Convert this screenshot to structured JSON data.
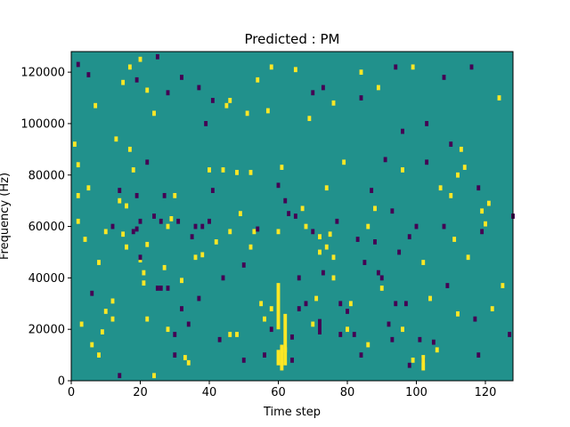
{
  "chart_data": {
    "type": "heatmap",
    "title": "Predicted : PM",
    "xlabel": "Time step",
    "ylabel": "Frequency (Hz)",
    "xlim": [
      0,
      128
    ],
    "ylim": [
      0,
      128000
    ],
    "xticks": [
      "0",
      "20",
      "40",
      "60",
      "80",
      "100",
      "120"
    ],
    "yticks": [
      "0",
      "20000",
      "40000",
      "60000",
      "80000",
      "100000",
      "120000"
    ],
    "background_value": 0,
    "colors": {
      "background": "#21918c",
      "high": "#fde725",
      "low": "#440154",
      "mid_dark": "#3b528b"
    },
    "cell_height_hz": 2000,
    "cells": [
      [
        2,
        123000,
        -1
      ],
      [
        5,
        119000,
        -1
      ],
      [
        7,
        107000,
        1
      ],
      [
        10,
        27000,
        1
      ],
      [
        12,
        31000,
        1
      ],
      [
        13,
        94000,
        1
      ],
      [
        14,
        74000,
        -1
      ],
      [
        15,
        116000,
        1
      ],
      [
        17,
        122000,
        1
      ],
      [
        20,
        125000,
        1
      ],
      [
        22,
        113000,
        1
      ],
      [
        24,
        104000,
        1
      ],
      [
        1,
        92000,
        1
      ],
      [
        2,
        84000,
        1
      ],
      [
        2,
        72000,
        1
      ],
      [
        2,
        62000,
        1
      ],
      [
        3,
        22000,
        1
      ],
      [
        4,
        55000,
        1
      ],
      [
        5,
        75000,
        1
      ],
      [
        6,
        34000,
        -1
      ],
      [
        8,
        46000,
        1
      ],
      [
        9,
        19000,
        1
      ],
      [
        12,
        24000,
        1
      ],
      [
        12,
        60000,
        -1
      ],
      [
        14,
        70000,
        1
      ],
      [
        15,
        57000,
        1
      ],
      [
        16,
        52000,
        1
      ],
      [
        17,
        90000,
        1
      ],
      [
        18,
        82000,
        1
      ],
      [
        19,
        72000,
        -1
      ],
      [
        19,
        59000,
        -1
      ],
      [
        20,
        62000,
        -1
      ],
      [
        20,
        47000,
        1
      ],
      [
        21,
        38000,
        1
      ],
      [
        21,
        42000,
        1
      ],
      [
        22,
        85000,
        -1
      ],
      [
        22,
        53000,
        1
      ],
      [
        24,
        64000,
        -1
      ],
      [
        25,
        36000,
        -1
      ],
      [
        26,
        62000,
        -1
      ],
      [
        27,
        72000,
        -1
      ],
      [
        27,
        44000,
        1
      ],
      [
        28,
        20000,
        1
      ],
      [
        28,
        36000,
        -1
      ],
      [
        29,
        63000,
        1
      ],
      [
        30,
        18000,
        -1
      ],
      [
        30,
        72000,
        1
      ],
      [
        31,
        62000,
        -1
      ],
      [
        32,
        39000,
        1
      ],
      [
        33,
        9000,
        1
      ],
      [
        34,
        7000,
        1
      ],
      [
        35,
        56000,
        -1
      ],
      [
        36,
        48000,
        1
      ],
      [
        37,
        32000,
        -1
      ],
      [
        38,
        49000,
        1
      ],
      [
        38,
        60000,
        -1
      ],
      [
        39,
        100000,
        -1
      ],
      [
        40,
        82000,
        1
      ],
      [
        41,
        74000,
        -1
      ],
      [
        43,
        16000,
        -1
      ],
      [
        44,
        82000,
        1
      ],
      [
        45,
        107000,
        1
      ],
      [
        46,
        58000,
        1
      ],
      [
        48,
        18000,
        1
      ],
      [
        48,
        81000,
        1
      ],
      [
        49,
        65000,
        1
      ],
      [
        50,
        45000,
        -1
      ],
      [
        51,
        104000,
        1
      ],
      [
        52,
        81000,
        1
      ],
      [
        53,
        58000,
        1
      ],
      [
        54,
        59000,
        -1
      ],
      [
        55,
        30000,
        1
      ],
      [
        56,
        24000,
        1
      ],
      [
        57,
        105000,
        1
      ],
      [
        58,
        28000,
        1
      ],
      [
        60,
        76000,
        -1
      ],
      [
        60,
        58000,
        1
      ],
      [
        61,
        83000,
        1
      ],
      [
        62,
        70000,
        -1
      ],
      [
        63,
        65000,
        -1
      ],
      [
        64,
        17000,
        -1
      ],
      [
        65,
        64000,
        -1
      ],
      [
        66,
        40000,
        -1
      ],
      [
        67,
        67000,
        1
      ],
      [
        68,
        60000,
        1
      ],
      [
        70,
        112000,
        -1
      ],
      [
        70,
        22000,
        1
      ],
      [
        71,
        32000,
        1
      ],
      [
        72,
        50000,
        1
      ],
      [
        73,
        42000,
        -1
      ],
      [
        74,
        75000,
        1
      ],
      [
        75,
        57000,
        1
      ],
      [
        76,
        40000,
        1
      ],
      [
        77,
        62000,
        -1
      ],
      [
        78,
        18000,
        -1
      ],
      [
        79,
        85000,
        1
      ],
      [
        80,
        27000,
        -1
      ],
      [
        81,
        30000,
        1
      ],
      [
        83,
        55000,
        -1
      ],
      [
        84,
        110000,
        -1
      ],
      [
        85,
        46000,
        -1
      ],
      [
        86,
        14000,
        1
      ],
      [
        87,
        74000,
        -1
      ],
      [
        88,
        67000,
        1
      ],
      [
        89,
        42000,
        -1
      ],
      [
        90,
        36000,
        1
      ],
      [
        91,
        86000,
        -1
      ],
      [
        92,
        22000,
        -1
      ],
      [
        93,
        66000,
        -1
      ],
      [
        95,
        50000,
        -1
      ],
      [
        96,
        82000,
        1
      ],
      [
        97,
        30000,
        -1
      ],
      [
        98,
        56000,
        -1
      ],
      [
        99,
        8000,
        1
      ],
      [
        100,
        60000,
        -1
      ],
      [
        101,
        16000,
        -1
      ],
      [
        102,
        46000,
        1
      ],
      [
        103,
        85000,
        -1
      ],
      [
        104,
        32000,
        1
      ],
      [
        106,
        12000,
        1
      ],
      [
        107,
        75000,
        1
      ],
      [
        108,
        60000,
        -1
      ],
      [
        109,
        37000,
        -1
      ],
      [
        110,
        92000,
        -1
      ],
      [
        111,
        55000,
        1
      ],
      [
        112,
        26000,
        1
      ],
      [
        114,
        83000,
        1
      ],
      [
        115,
        48000,
        1
      ],
      [
        117,
        24000,
        -1
      ],
      [
        118,
        10000,
        -1
      ],
      [
        119,
        58000,
        -1
      ],
      [
        120,
        61000,
        1
      ],
      [
        121,
        69000,
        1
      ],
      [
        122,
        28000,
        1
      ],
      [
        124,
        110000,
        1
      ],
      [
        125,
        37000,
        1
      ],
      [
        127,
        18000,
        -1
      ],
      [
        128,
        64000,
        -1
      ],
      [
        118,
        75000,
        -1
      ],
      [
        119,
        66000,
        1
      ],
      [
        110,
        72000,
        1
      ],
      [
        112,
        80000,
        1
      ],
      [
        113,
        90000,
        1
      ],
      [
        105,
        15000,
        -1
      ],
      [
        102,
        8000,
        -1
      ],
      [
        98,
        6000,
        -1
      ],
      [
        96,
        20000,
        1
      ],
      [
        94,
        30000,
        -1
      ],
      [
        93,
        16000,
        -1
      ],
      [
        90,
        40000,
        -1
      ],
      [
        88,
        54000,
        -1
      ],
      [
        86,
        60000,
        1
      ],
      [
        84,
        10000,
        -1
      ],
      [
        82,
        18000,
        -1
      ],
      [
        80,
        20000,
        1
      ],
      [
        78,
        30000,
        -1
      ],
      [
        76,
        48000,
        1
      ],
      [
        74,
        52000,
        1
      ],
      [
        72,
        56000,
        1
      ],
      [
        70,
        58000,
        -1
      ],
      [
        68,
        30000,
        -1
      ],
      [
        66,
        28000,
        -1
      ],
      [
        64,
        8000,
        -1
      ],
      [
        62,
        12000,
        1
      ],
      [
        58,
        20000,
        -1
      ],
      [
        56,
        10000,
        -1
      ],
      [
        52,
        52000,
        1
      ],
      [
        50,
        8000,
        -1
      ],
      [
        46,
        18000,
        1
      ],
      [
        44,
        40000,
        -1
      ],
      [
        42,
        54000,
        1
      ],
      [
        40,
        62000,
        -1
      ],
      [
        36,
        60000,
        -1
      ],
      [
        34,
        22000,
        -1
      ],
      [
        32,
        28000,
        -1
      ],
      [
        30,
        10000,
        -1
      ],
      [
        28,
        60000,
        1
      ],
      [
        26,
        36000,
        -1
      ],
      [
        24,
        2000,
        1
      ],
      [
        22,
        24000,
        1
      ],
      [
        20,
        48000,
        -1
      ],
      [
        18,
        58000,
        -1
      ],
      [
        16,
        68000,
        1
      ],
      [
        14,
        2000,
        -1
      ],
      [
        10,
        58000,
        1
      ],
      [
        8,
        10000,
        1
      ],
      [
        6,
        14000,
        1
      ],
      [
        116,
        122000,
        -1
      ],
      [
        108,
        118000,
        -1
      ],
      [
        103,
        100000,
        -1
      ],
      [
        99,
        122000,
        1
      ],
      [
        96,
        97000,
        -1
      ],
      [
        94,
        122000,
        -1
      ],
      [
        89,
        114000,
        1
      ],
      [
        84,
        120000,
        1
      ],
      [
        76,
        108000,
        1
      ],
      [
        73,
        114000,
        -1
      ],
      [
        69,
        102000,
        1
      ],
      [
        65,
        121000,
        1
      ],
      [
        58,
        122000,
        1
      ],
      [
        54,
        117000,
        1
      ],
      [
        46,
        109000,
        1
      ],
      [
        41,
        109000,
        -1
      ],
      [
        37,
        114000,
        -1
      ],
      [
        32,
        118000,
        -1
      ],
      [
        28,
        112000,
        -1
      ],
      [
        25,
        126000,
        -1
      ],
      [
        19,
        117000,
        -1
      ]
    ],
    "stripes": [
      {
        "x": 60,
        "y_from": 20000,
        "y_to": 38000,
        "value": 1
      },
      {
        "x": 61,
        "y_from": 4000,
        "y_to": 14000,
        "value": 1
      },
      {
        "x": 62,
        "y_from": 6000,
        "y_to": 26000,
        "value": 1
      },
      {
        "x": 60,
        "y_from": 6000,
        "y_to": 12000,
        "value": 1
      },
      {
        "x": 72,
        "y_from": 18000,
        "y_to": 24000,
        "value": -1
      },
      {
        "x": 102,
        "y_from": 4000,
        "y_to": 10000,
        "value": 1
      }
    ]
  }
}
